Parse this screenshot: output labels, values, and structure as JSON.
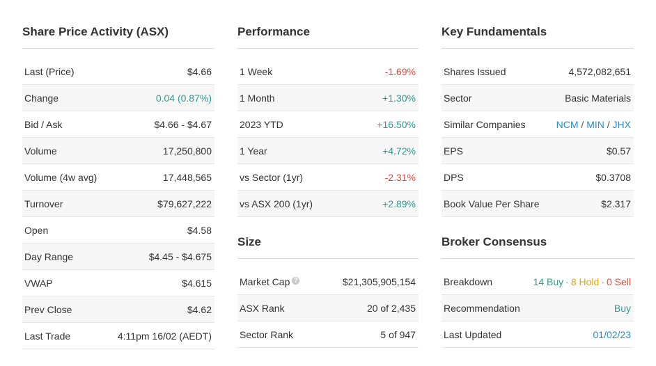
{
  "share_price": {
    "title": "Share Price Activity (ASX)",
    "rows": [
      {
        "label": "Last (Price)",
        "value": "$4.66"
      },
      {
        "label": "Change",
        "value": "0.04 (0.87%)"
      },
      {
        "label": "Bid / Ask",
        "value": "$4.66 - $4.67"
      },
      {
        "label": "Volume",
        "value": "17,250,800"
      },
      {
        "label": "Volume (4w avg)",
        "value": "17,448,565"
      },
      {
        "label": "Turnover",
        "value": "$79,627,222"
      },
      {
        "label": "Open",
        "value": "$4.58"
      },
      {
        "label": "Day Range",
        "value": "$4.45 - $4.675"
      },
      {
        "label": "VWAP",
        "value": "$4.615"
      },
      {
        "label": "Prev Close",
        "value": "$4.62"
      },
      {
        "label": "Last Trade",
        "value": "4:11pm 16/02 (AEDT)"
      }
    ]
  },
  "performance": {
    "title": "Performance",
    "rows": [
      {
        "label": "1 Week",
        "value": "-1.69%"
      },
      {
        "label": "1 Month",
        "value": "+1.30%"
      },
      {
        "label": "2023 YTD",
        "value": "+16.50%"
      },
      {
        "label": "1 Year",
        "value": "+4.72%"
      },
      {
        "label": "vs Sector (1yr)",
        "value": "-2.31%"
      },
      {
        "label": "vs ASX 200 (1yr)",
        "value": "+2.89%"
      }
    ]
  },
  "size": {
    "title": "Size",
    "rows": [
      {
        "label": "Market Cap",
        "value": "$21,305,905,154",
        "icon_text": "?"
      },
      {
        "label": "ASX Rank",
        "value": "20 of 2,435"
      },
      {
        "label": "Sector Rank",
        "value": "5 of 947"
      }
    ]
  },
  "fundamentals": {
    "title": "Key Fundamentals",
    "rows": [
      {
        "label": "Shares Issued",
        "value": "4,572,082,651"
      },
      {
        "label": "Sector",
        "value": "Basic Materials"
      },
      {
        "label": "Similar Companies",
        "links": [
          "NCM",
          "MIN",
          "JHX"
        ],
        "separator": "/"
      },
      {
        "label": "EPS",
        "value": "$0.57"
      },
      {
        "label": "DPS",
        "value": "$0.3708"
      },
      {
        "label": "Book Value Per Share",
        "value": "$2.317"
      }
    ]
  },
  "broker": {
    "title": "Broker Consensus",
    "rows": [
      {
        "label": "Breakdown",
        "buy": "14 Buy",
        "hold": "8 Hold",
        "sell": "0 Sell",
        "dot": "·"
      },
      {
        "label": "Recommendation",
        "value": "Buy"
      },
      {
        "label": "Last Updated",
        "value": "01/02/23"
      }
    ]
  },
  "colors": {
    "positive": "#2a9d8f",
    "negative": "#e04b3c",
    "hold": "#e0a800",
    "link": "#2b8ec9"
  }
}
